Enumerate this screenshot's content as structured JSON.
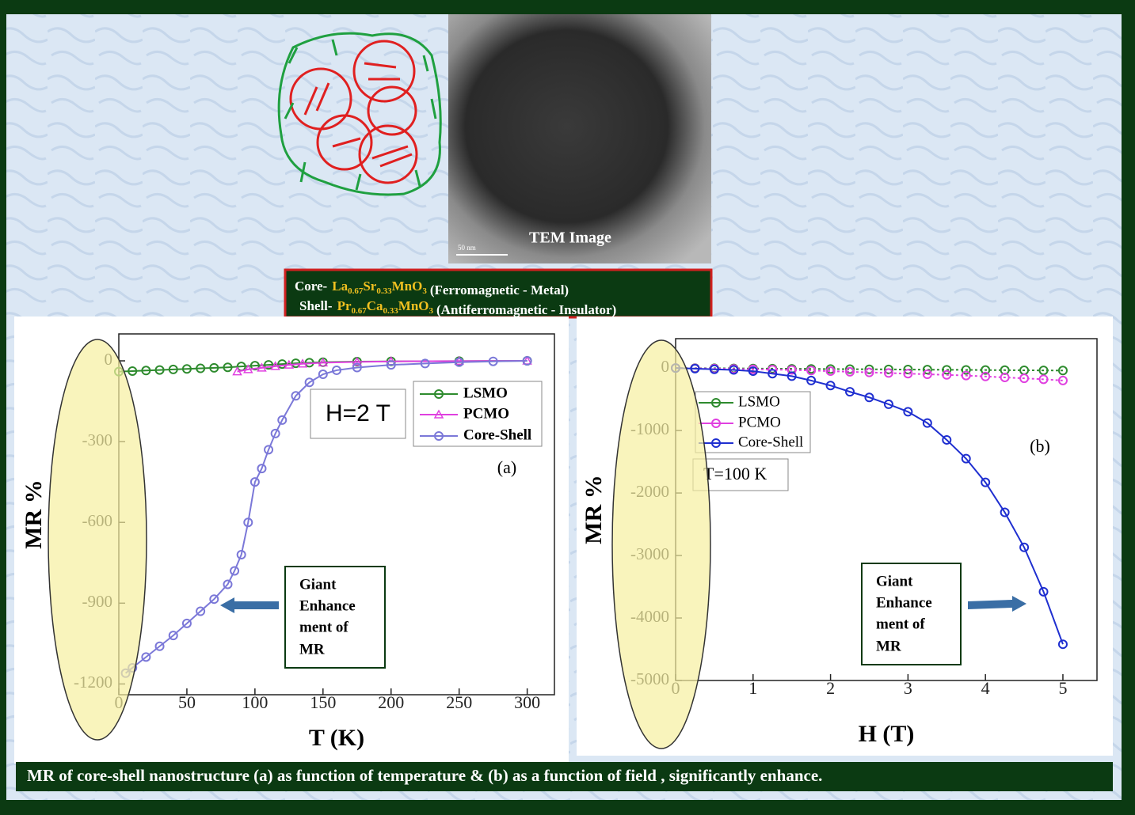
{
  "slide": {
    "tem_label": "TEM Image",
    "scale_bar": "50 nm",
    "core": {
      "label": "Core-",
      "formula": [
        "La",
        "0.67",
        "Sr",
        "0.33",
        "MnO",
        "3"
      ],
      "description": "(Ferromagnetic - Metal)"
    },
    "shell": {
      "label": "Shell-",
      "formula": [
        "Pr",
        "0.67",
        "Ca",
        "0.33",
        "MnO",
        "3"
      ],
      "description": "(Antiferromagnetic - Insulator)"
    },
    "caption": "MR of core-shell nanostructure  (a) as function of temperature & (b) as a function of field , significantly enhance."
  },
  "chart_data": [
    {
      "type": "line",
      "x_label": "T (K)",
      "y_label": "MR %",
      "xlim": [
        0,
        320
      ],
      "ylim": [
        -1240,
        100
      ],
      "xticks": [
        0,
        50,
        100,
        150,
        200,
        250,
        300
      ],
      "yticks": [
        0,
        -300,
        -600,
        -900,
        -1200
      ],
      "annotations": {
        "field": "H=2 T",
        "panel": "(a)",
        "note": [
          "Giant",
          "Enhance",
          "ment of",
          "MR"
        ]
      },
      "series": [
        {
          "name": "LSMO",
          "color": "#2e8b2e",
          "marker": "circle",
          "x": [
            0,
            10,
            20,
            30,
            40,
            50,
            60,
            70,
            80,
            90,
            100,
            110,
            120,
            130,
            140,
            150,
            175,
            200,
            250,
            300
          ],
          "values": [
            -40,
            -38,
            -36,
            -34,
            -32,
            -30,
            -28,
            -26,
            -24,
            -21,
            -18,
            -15,
            -12,
            -9,
            -7,
            -5,
            -3,
            -2,
            -1,
            0
          ]
        },
        {
          "name": "PCMO",
          "color": "#e040e0",
          "marker": "triangle",
          "x": [
            87,
            95,
            105,
            115,
            125,
            135,
            150,
            175,
            200,
            250,
            300
          ],
          "values": [
            -40,
            -32,
            -26,
            -20,
            -15,
            -11,
            -7,
            -4,
            -2,
            -1,
            0
          ]
        },
        {
          "name": "Core-Shell",
          "color": "#7b78d8",
          "marker": "circle",
          "x": [
            5,
            10,
            20,
            30,
            40,
            50,
            60,
            70,
            80,
            85,
            90,
            95,
            100,
            105,
            110,
            115,
            120,
            130,
            140,
            150,
            160,
            175,
            200,
            225,
            250,
            275,
            300
          ],
          "values": [
            -1160,
            -1140,
            -1100,
            -1060,
            -1020,
            -975,
            -930,
            -885,
            -830,
            -780,
            -720,
            -600,
            -450,
            -400,
            -330,
            -270,
            -220,
            -130,
            -80,
            -50,
            -35,
            -25,
            -15,
            -10,
            -5,
            -2,
            0
          ]
        }
      ]
    },
    {
      "type": "line",
      "x_label": "H (T)",
      "y_label": "MR %",
      "xlim": [
        0,
        5.44
      ],
      "ylim": [
        -5000,
        470
      ],
      "xticks": [
        0,
        1,
        2,
        3,
        4,
        5
      ],
      "yticks": [
        0,
        -1000,
        -2000,
        -3000,
        -4000,
        -5000
      ],
      "annotations": {
        "field": "T=100 K",
        "panel": "(b)",
        "note": [
          "Giant",
          "Enhance",
          "ment of",
          "MR"
        ]
      },
      "series": [
        {
          "name": "LSMO",
          "color": "#2e8b2e",
          "marker": "circle",
          "x": [
            0,
            0.25,
            0.5,
            0.75,
            1,
            1.25,
            1.5,
            1.75,
            2,
            2.25,
            2.5,
            2.75,
            3,
            3.25,
            3.5,
            3.75,
            4,
            4.25,
            4.5,
            4.75,
            5
          ],
          "values": [
            0,
            -2,
            -4,
            -6,
            -8,
            -10,
            -12,
            -14,
            -16,
            -18,
            -20,
            -22,
            -24,
            -26,
            -28,
            -30,
            -32,
            -34,
            -36,
            -38,
            -40
          ]
        },
        {
          "name": "PCMO",
          "color": "#e040e0",
          "marker": "circle",
          "x": [
            0,
            0.25,
            0.5,
            0.75,
            1,
            1.25,
            1.5,
            1.75,
            2,
            2.25,
            2.5,
            2.75,
            3,
            3.25,
            3.5,
            3.75,
            4,
            4.25,
            4.5,
            4.75,
            5
          ],
          "values": [
            0,
            -5,
            -10,
            -15,
            -20,
            -25,
            -30,
            -40,
            -50,
            -60,
            -70,
            -80,
            -90,
            -100,
            -110,
            -120,
            -135,
            -150,
            -165,
            -180,
            -200
          ]
        },
        {
          "name": "Core-Shell",
          "color": "#1f2fd0",
          "marker": "circle",
          "x": [
            0,
            0.25,
            0.5,
            0.75,
            1,
            1.25,
            1.5,
            1.75,
            2,
            2.25,
            2.5,
            2.75,
            3,
            3.25,
            3.5,
            3.75,
            4,
            4.25,
            4.5,
            4.75,
            5
          ],
          "values": [
            0,
            -10,
            -20,
            -30,
            -50,
            -90,
            -130,
            -200,
            -280,
            -380,
            -470,
            -580,
            -700,
            -880,
            -1150,
            -1450,
            -1830,
            -2310,
            -2870,
            -3580,
            -4420
          ]
        }
      ]
    }
  ]
}
